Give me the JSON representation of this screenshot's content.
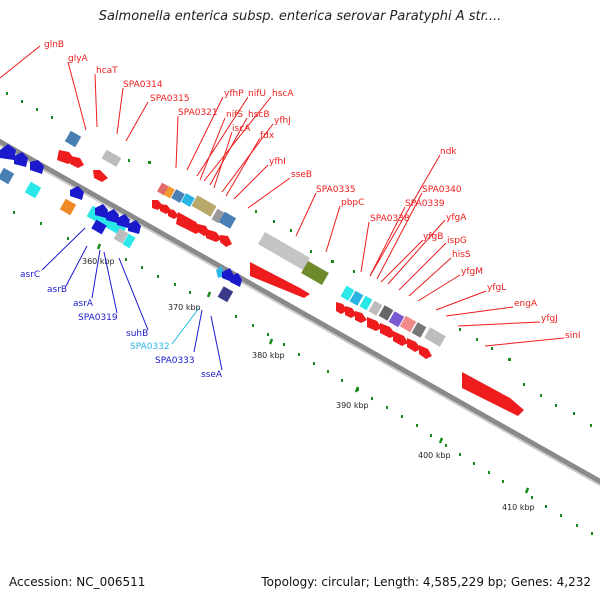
{
  "title": "Salmonella enterica subsp. enterica serovar Paratyphi A str....",
  "footer": {
    "accession": "Accession: NC_006511",
    "summary": "Topology: circular; Length: 4,585,229 bp; Genes: 4,232"
  },
  "colors": {
    "forward_genes": "#ee1c1c",
    "reverse_genes": "#1a1acc",
    "reverse_highlight": "#29b6e8",
    "backbone": "#888888",
    "ticks": "#1a8a1a",
    "scale_label": "#222222"
  },
  "scale_labels": [
    "360 kbp",
    "370 kbp",
    "380 kbp",
    "390 kbp",
    "400 kbp",
    "410 kbp"
  ],
  "forward_labels": [
    "glnB",
    "glyA",
    "hcaT",
    "SPA0314",
    "SPA0315",
    "SPA0321",
    "yfhP",
    "nifU",
    "hscA",
    "nifS",
    "hscB",
    "iscA",
    "yfhJ",
    "fdx",
    "yfhI",
    "sseB",
    "SPA0335",
    "pbpC",
    "ndk",
    "SPA0340",
    "SPA0339",
    "SPA0338",
    "yfgA",
    "yfgB",
    "ispG",
    "hisS",
    "yfgM",
    "yfgL",
    "engA",
    "yfgJ",
    "sinI"
  ],
  "reverse_labels": [
    "asrC",
    "asrB",
    "asrA",
    "SPA0319",
    "suhB",
    "SPA0332",
    "SPA0333",
    "sseA"
  ]
}
